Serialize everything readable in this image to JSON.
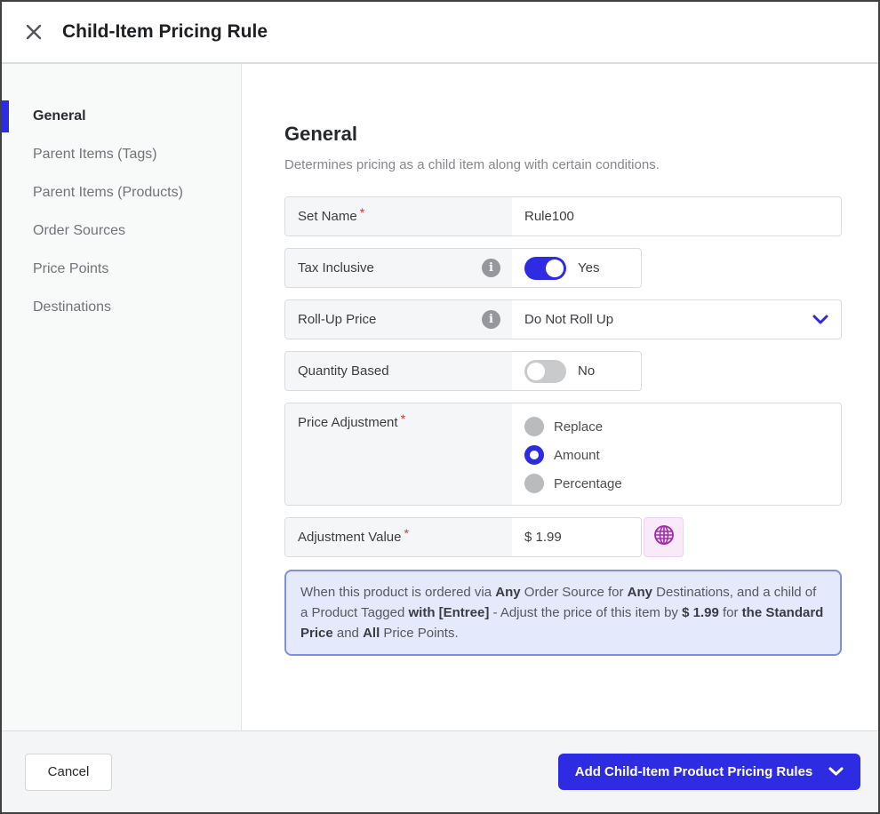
{
  "modal": {
    "title": "Child-Item Pricing Rule"
  },
  "icons": {
    "info_glyph": "i"
  },
  "sidebar": {
    "items": [
      {
        "label": "General",
        "active": true
      },
      {
        "label": "Parent Items (Tags)",
        "active": false
      },
      {
        "label": "Parent Items (Products)",
        "active": false
      },
      {
        "label": "Order Sources",
        "active": false
      },
      {
        "label": "Price Points",
        "active": false
      },
      {
        "label": "Destinations",
        "active": false
      }
    ]
  },
  "section": {
    "title": "General",
    "description": "Determines pricing as a child item along with certain conditions."
  },
  "form": {
    "set_name": {
      "label": "Set Name",
      "required": "*",
      "value": "Rule100"
    },
    "tax_inclusive": {
      "label": "Tax Inclusive",
      "state": "Yes",
      "on": true
    },
    "roll_up_price": {
      "label": "Roll-Up Price",
      "value": "Do Not Roll Up"
    },
    "quantity_based": {
      "label": "Quantity Based",
      "state": "No",
      "on": false
    },
    "price_adjustment": {
      "label": "Price Adjustment",
      "required": "*",
      "options": [
        {
          "label": "Replace",
          "selected": false
        },
        {
          "label": "Amount",
          "selected": true
        },
        {
          "label": "Percentage",
          "selected": false
        }
      ]
    },
    "adjustment_value": {
      "label": "Adjustment Value",
      "required": "*",
      "value": "$ 1.99"
    }
  },
  "summary": {
    "segments": [
      {
        "text": "When this product is ordered via ",
        "bold": false
      },
      {
        "text": "Any",
        "bold": true
      },
      {
        "text": " Order Source for ",
        "bold": false
      },
      {
        "text": "Any",
        "bold": true
      },
      {
        "text": " Destinations, and a child of a Product Tagged ",
        "bold": false
      },
      {
        "text": "with [Entree]",
        "bold": true
      },
      {
        "text": " - Adjust the price of this item by ",
        "bold": false
      },
      {
        "text": "$ 1.99",
        "bold": true
      },
      {
        "text": " for ",
        "bold": false
      },
      {
        "text": "the Standard Price",
        "bold": true
      },
      {
        "text": " and ",
        "bold": false
      },
      {
        "text": "All",
        "bold": true
      },
      {
        "text": " Price Points.",
        "bold": false
      }
    ]
  },
  "footer": {
    "cancel_label": "Cancel",
    "primary_label": "Add Child-Item Product Pricing Rules"
  },
  "colors": {
    "accent": "#2e2ce2",
    "summary_bg": "#e4eafc",
    "summary_border": "#7e90da",
    "globe": "#a428ad",
    "required": "#d13737"
  }
}
